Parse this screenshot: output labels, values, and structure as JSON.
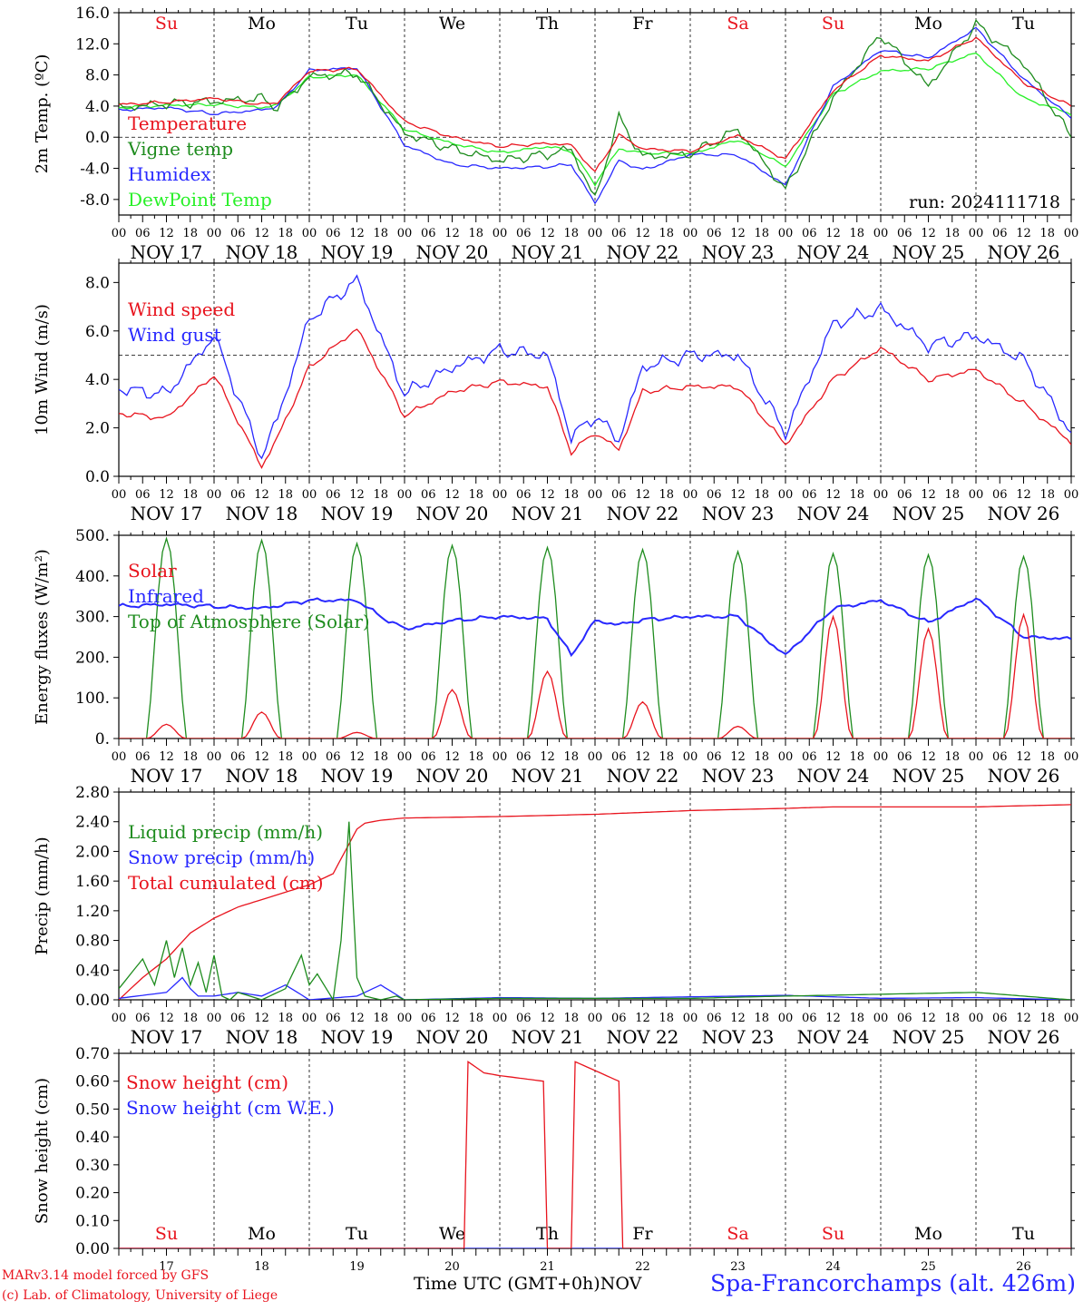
{
  "figure": {
    "station": "Spa-Francorchamps (alt. 426m)",
    "credit_line1": "MARv3.14 model forced by GFS",
    "credit_line2": "(c) Lab. of Climatology, University of Liege",
    "time_axis_label": "Time UTC (GMT+0h)",
    "time_axis_month": "NOV",
    "run_label": "run: 2024111718"
  },
  "time_axis": {
    "hour_ticks": [
      "00",
      "06",
      "12",
      "18"
    ],
    "date_labels": [
      "NOV 17",
      "NOV 18",
      "NOV 19",
      "NOV 20",
      "NOV 21",
      "NOV 22",
      "NOV 23",
      "NOV 24",
      "NOV 25",
      "NOV 26"
    ],
    "day_numbers": [
      "17",
      "18",
      "19",
      "20",
      "21",
      "22",
      "23",
      "24",
      "25",
      "26"
    ],
    "weekdays": [
      {
        "label": "Su",
        "color": "#e8141e"
      },
      {
        "label": "Mo",
        "color": "#000000"
      },
      {
        "label": "Tu",
        "color": "#000000"
      },
      {
        "label": "We",
        "color": "#000000"
      },
      {
        "label": "Th",
        "color": "#000000"
      },
      {
        "label": "Fr",
        "color": "#000000"
      },
      {
        "label": "Sa",
        "color": "#e8141e"
      },
      {
        "label": "Su",
        "color": "#e8141e"
      },
      {
        "label": "Mo",
        "color": "#000000"
      },
      {
        "label": "Tu",
        "color": "#000000"
      }
    ]
  },
  "chart_data": [
    {
      "type": "line",
      "ylabel": "2m Temp. (ºC)",
      "ylim": [
        -10,
        16
      ],
      "yticks": [
        "16.0",
        "12.0",
        "8.0",
        "4.0",
        "0.0",
        "-4.0",
        "-8.0"
      ],
      "ytick_values": [
        16,
        12,
        8,
        4,
        0,
        -4,
        -8
      ],
      "reference_line": 0,
      "x_unit": "hours since Nov 17 00 UTC",
      "series": [
        {
          "name": "Temperature",
          "color": "#e8141e",
          "x": [
            0,
            12,
            24,
            36,
            40,
            48,
            60,
            72,
            84,
            96,
            108,
            114,
            120,
            126,
            132,
            144,
            156,
            168,
            180,
            192,
            204,
            216,
            228,
            240
          ],
          "values": [
            4.2,
            4.5,
            5.0,
            4.2,
            4.5,
            8.5,
            8.8,
            2.0,
            0.0,
            -1.2,
            -0.8,
            -1.0,
            -4.5,
            0.3,
            -1.5,
            -1.8,
            0.2,
            -2.8,
            6.0,
            10.5,
            9.8,
            12.8,
            7.0,
            4.0
          ]
        },
        {
          "name": "Vigne temp",
          "color": "#1e8c1e",
          "x": [
            0,
            12,
            24,
            36,
            40,
            48,
            60,
            72,
            84,
            96,
            108,
            114,
            120,
            126,
            132,
            144,
            156,
            168,
            180,
            192,
            204,
            216,
            228,
            240
          ],
          "values": [
            3.8,
            4.3,
            4.6,
            5.0,
            3.8,
            7.8,
            8.2,
            0.5,
            -1.5,
            -3.0,
            -2.2,
            -1.5,
            -8.0,
            2.5,
            -2.5,
            -2.2,
            1.0,
            -6.8,
            5.0,
            13.2,
            6.5,
            14.5,
            9.5,
            0.0
          ]
        },
        {
          "name": "Humidex",
          "color": "#2828ff",
          "x": [
            0,
            12,
            24,
            36,
            40,
            48,
            60,
            72,
            84,
            96,
            108,
            114,
            120,
            126,
            132,
            144,
            156,
            168,
            180,
            192,
            204,
            216,
            228,
            240
          ],
          "values": [
            3.5,
            3.8,
            3.0,
            3.5,
            4.0,
            8.6,
            8.9,
            -1.0,
            -3.5,
            -4.0,
            -3.8,
            -3.5,
            -8.5,
            -3.0,
            -4.2,
            -2.2,
            -2.3,
            -6.2,
            6.5,
            11.2,
            10.2,
            14.0,
            7.5,
            2.5
          ]
        },
        {
          "name": "DewPoint Temp",
          "color": "#28f028",
          "x": [
            0,
            12,
            24,
            36,
            40,
            48,
            60,
            72,
            84,
            96,
            108,
            114,
            120,
            126,
            132,
            144,
            156,
            168,
            180,
            192,
            204,
            216,
            228,
            240
          ],
          "values": [
            3.8,
            4.1,
            4.2,
            3.8,
            4.2,
            7.7,
            8.0,
            1.0,
            -0.8,
            -2.0,
            -1.2,
            -1.8,
            -6.0,
            -1.5,
            -2.0,
            -2.2,
            -0.3,
            -3.8,
            5.5,
            8.5,
            8.8,
            10.8,
            5.0,
            3.0
          ]
        }
      ]
    },
    {
      "type": "line",
      "ylabel": "10m Wind (m/s)",
      "ylim": [
        0,
        8.8
      ],
      "yticks": [
        "8.0",
        "6.0",
        "4.0",
        "2.0",
        "0.0"
      ],
      "ytick_values": [
        8,
        6,
        4,
        2,
        0
      ],
      "reference_line": 5,
      "x_unit": "hours since Nov 17 00 UTC",
      "series": [
        {
          "name": "Wind speed",
          "color": "#e8141e",
          "x": [
            0,
            12,
            24,
            36,
            40,
            48,
            60,
            72,
            84,
            96,
            108,
            114,
            120,
            126,
            132,
            144,
            156,
            168,
            180,
            192,
            204,
            216,
            228,
            240
          ],
          "values": [
            2.6,
            2.4,
            4.2,
            0.4,
            1.6,
            4.5,
            6.1,
            2.5,
            3.5,
            3.9,
            3.7,
            1.0,
            1.8,
            1.1,
            3.5,
            3.7,
            3.7,
            1.3,
            4.0,
            5.3,
            4.0,
            4.4,
            3.0,
            1.4
          ]
        },
        {
          "name": "Wind gust",
          "color": "#2828ff",
          "x": [
            0,
            12,
            24,
            36,
            40,
            48,
            60,
            72,
            84,
            96,
            108,
            114,
            120,
            126,
            132,
            144,
            156,
            168,
            180,
            192,
            204,
            216,
            228,
            240
          ],
          "values": [
            3.6,
            3.4,
            5.8,
            0.8,
            2.4,
            6.5,
            8.1,
            3.4,
            4.5,
            5.2,
            5.0,
            1.6,
            2.5,
            1.5,
            4.5,
            5.0,
            5.0,
            1.8,
            6.3,
            6.9,
            5.4,
            5.8,
            4.8,
            1.8
          ]
        }
      ]
    },
    {
      "type": "line",
      "ylabel": "Energy fluxes (W/m²)",
      "ylim": [
        0,
        500
      ],
      "yticks": [
        "500.",
        "400.",
        "300.",
        "200.",
        "100.",
        "0."
      ],
      "ytick_values": [
        500,
        400,
        300,
        200,
        100,
        0
      ],
      "x_unit": "hours since Nov 17 00 UTC",
      "series": [
        {
          "name": "Solar",
          "color": "#e8141e",
          "daily_peak_hour": 12,
          "daily_peaks": [
            35,
            65,
            15,
            120,
            165,
            90,
            30,
            300,
            270,
            305
          ]
        },
        {
          "name": "Infrared",
          "color": "#2828ff",
          "x": [
            0,
            12,
            24,
            36,
            48,
            60,
            66,
            72,
            84,
            96,
            108,
            114,
            120,
            126,
            132,
            144,
            156,
            168,
            180,
            192,
            204,
            216,
            228,
            240
          ],
          "values": [
            325,
            330,
            325,
            320,
            340,
            340,
            300,
            270,
            290,
            300,
            295,
            205,
            290,
            280,
            292,
            300,
            300,
            205,
            320,
            340,
            285,
            345,
            250,
            245
          ]
        },
        {
          "name": "Top of Atmosphere (Solar)",
          "color": "#1e8c1e",
          "daily_peak_hour": 12,
          "daily_peaks": [
            492,
            488,
            480,
            475,
            470,
            465,
            460,
            455,
            452,
            448
          ]
        }
      ]
    },
    {
      "type": "line",
      "ylabel": "Precip (mm/h)",
      "ylim": [
        0,
        2.8
      ],
      "yticks": [
        "2.80",
        "2.40",
        "2.00",
        "1.60",
        "1.20",
        "0.80",
        "0.40",
        "0.00"
      ],
      "ytick_values": [
        2.8,
        2.4,
        2.0,
        1.6,
        1.2,
        0.8,
        0.4,
        0.0
      ],
      "x_unit": "hours since Nov 17 00 UTC",
      "series": [
        {
          "name": "Liquid precip (mm/h)",
          "color": "#1e8c1e",
          "x": [
            0,
            6,
            9,
            12,
            14,
            16,
            18,
            20,
            22,
            24,
            26,
            28,
            30,
            36,
            42,
            46,
            48,
            50,
            54,
            56,
            58,
            60,
            62,
            66,
            70,
            72,
            96,
            108,
            120,
            144,
            168,
            216,
            240
          ],
          "values": [
            0.15,
            0.55,
            0.2,
            0.8,
            0.3,
            0.7,
            0.2,
            0.5,
            0.1,
            0.6,
            0.05,
            0.0,
            0.1,
            0.0,
            0.15,
            0.6,
            0.2,
            0.35,
            0.0,
            0.8,
            2.4,
            0.3,
            0.05,
            0.0,
            0.05,
            0.0,
            0.02,
            0.02,
            0.02,
            0.02,
            0.05,
            0.1,
            0.0
          ]
        },
        {
          "name": "Snow precip (mm/h)",
          "color": "#2828ff",
          "x": [
            0,
            12,
            16,
            18,
            20,
            24,
            30,
            36,
            42,
            48,
            60,
            66,
            72,
            96,
            120,
            144,
            168,
            192,
            216,
            240
          ],
          "values": [
            0.02,
            0.1,
            0.3,
            0.15,
            0.05,
            0.05,
            0.1,
            0.05,
            0.2,
            0.0,
            0.05,
            0.2,
            0.0,
            0.03,
            0.02,
            0.04,
            0.06,
            0.02,
            0.03,
            0.0
          ]
        },
        {
          "name": "Total cumulated (cm)",
          "color": "#e8141e",
          "x": [
            0,
            6,
            12,
            18,
            24,
            30,
            36,
            42,
            48,
            54,
            58,
            60,
            62,
            66,
            72,
            96,
            120,
            144,
            168,
            180,
            216,
            240
          ],
          "values": [
            0.0,
            0.3,
            0.55,
            0.9,
            1.1,
            1.25,
            1.35,
            1.45,
            1.55,
            1.7,
            2.1,
            2.3,
            2.38,
            2.42,
            2.45,
            2.47,
            2.5,
            2.55,
            2.58,
            2.6,
            2.6,
            2.63
          ]
        }
      ]
    },
    {
      "type": "line",
      "ylabel": "Snow height (cm)",
      "ylim": [
        0,
        0.7
      ],
      "yticks": [
        "0.70",
        "0.60",
        "0.50",
        "0.40",
        "0.30",
        "0.20",
        "0.10",
        "0.00"
      ],
      "ytick_values": [
        0.7,
        0.6,
        0.5,
        0.4,
        0.3,
        0.2,
        0.1,
        0.0
      ],
      "x_unit": "hours since Nov 17 00 UTC",
      "series": [
        {
          "name": "Snow height (cm)",
          "color": "#e8141e",
          "x": [
            0,
            87,
            88,
            92,
            96,
            107,
            108,
            114,
            115,
            126,
            127,
            131,
            135,
            136,
            240
          ],
          "values": [
            0,
            0,
            0.67,
            0.63,
            0.62,
            0.6,
            0.0,
            0.0,
            0.67,
            0.6,
            0.0,
            0.0,
            0.0,
            0.0,
            0.0
          ]
        },
        {
          "name": "Snow height (cm W.E.)",
          "color": "#2828ff",
          "x": [
            0,
            240
          ],
          "values": [
            0,
            0
          ]
        }
      ]
    }
  ]
}
